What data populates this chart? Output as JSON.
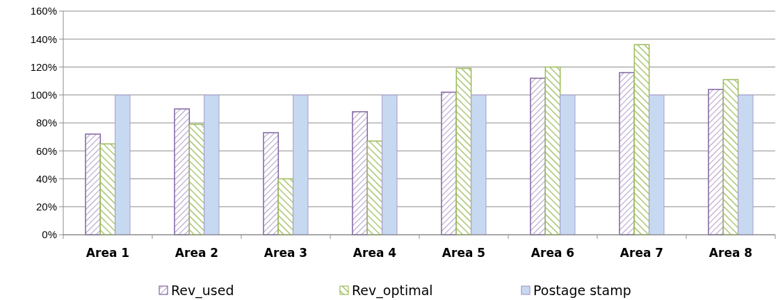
{
  "chart_data": {
    "type": "bar",
    "categories": [
      "Area 1",
      "Area 2",
      "Area 3",
      "Area 4",
      "Area 5",
      "Area 6",
      "Area 7",
      "Area 8"
    ],
    "series": [
      {
        "name": "Rev_used",
        "color": "#8064a2",
        "values": [
          72,
          90,
          73,
          88,
          102,
          112,
          116,
          104
        ]
      },
      {
        "name": "Rev_optimal",
        "color": "#9bbb59",
        "values": [
          65,
          79,
          40,
          67,
          119,
          120,
          136,
          111
        ]
      },
      {
        "name": "Postage stamp",
        "color": "#c6d9f1",
        "values": [
          100,
          100,
          100,
          100,
          100,
          100,
          100,
          100
        ]
      }
    ],
    "ylim": [
      0,
      160
    ],
    "yticks": [
      {
        "value": 0,
        "label": "0%"
      },
      {
        "value": 20,
        "label": "20%"
      },
      {
        "value": 40,
        "label": "40%"
      },
      {
        "value": 60,
        "label": "60%"
      },
      {
        "value": 80,
        "label": "80%"
      },
      {
        "value": 100,
        "label": "100%"
      },
      {
        "value": 120,
        "label": "120%"
      },
      {
        "value": 140,
        "label": "140%"
      },
      {
        "value": 160,
        "label": "160%"
      }
    ],
    "grid": "y",
    "legend": "bottom"
  }
}
